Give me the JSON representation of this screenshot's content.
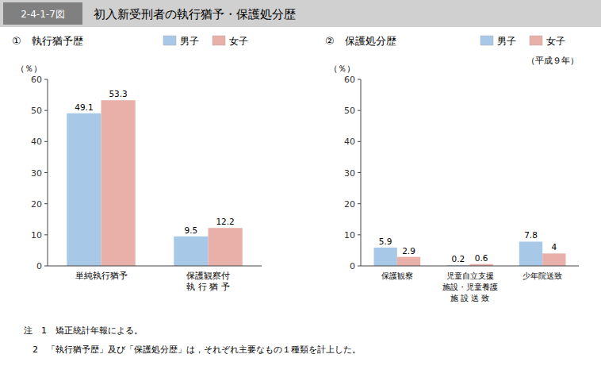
{
  "chart_data": [
    {
      "type": "bar",
      "title": "初入新受刑者の執行猶予・保護処分歴",
      "subtitle": "①　執行猶予歴",
      "categories": [
        "単純執行猶予",
        "保護観察付\n執 行 猶 予"
      ],
      "series": [
        {
          "name": "男子",
          "color": "#a8c8e8",
          "values": [
            49.1,
            9.5
          ]
        },
        {
          "name": "女子",
          "color": "#e8b0a8",
          "values": [
            53.3,
            12.2
          ]
        }
      ],
      "ylabel": "（％）",
      "ylim": [
        0,
        60
      ],
      "yticks": [
        0,
        10,
        20,
        30,
        40,
        50,
        60
      ],
      "data_labels": true,
      "legend": "upper right",
      "grid": false,
      "annotations": [
        "2-4-1-7図",
        "（平成９年）",
        "注　1　矯正統計年報による。",
        "　2　「執行猶予歴」及び「保護処分歴」は，それぞれ主要なもの１種類を計上した。"
      ]
    },
    {
      "type": "bar",
      "subtitle": "②　保護処分歴",
      "categories": [
        "保護観察",
        "児童自立支援\n施設・児童養護\n施 設 送 致",
        "少年院送致"
      ],
      "series": [
        {
          "name": "男子",
          "color": "#a8c8e8",
          "values": [
            5.9,
            0.2,
            7.8
          ]
        },
        {
          "name": "女子",
          "color": "#e8b0a8",
          "values": [
            2.9,
            0.6,
            4.0
          ]
        }
      ],
      "ylabel": "（％）",
      "ylim": [
        0,
        60
      ],
      "yticks": [
        0,
        10,
        20,
        30,
        40,
        50,
        60
      ],
      "data_labels": true,
      "legend": "upper right",
      "grid": false
    }
  ]
}
